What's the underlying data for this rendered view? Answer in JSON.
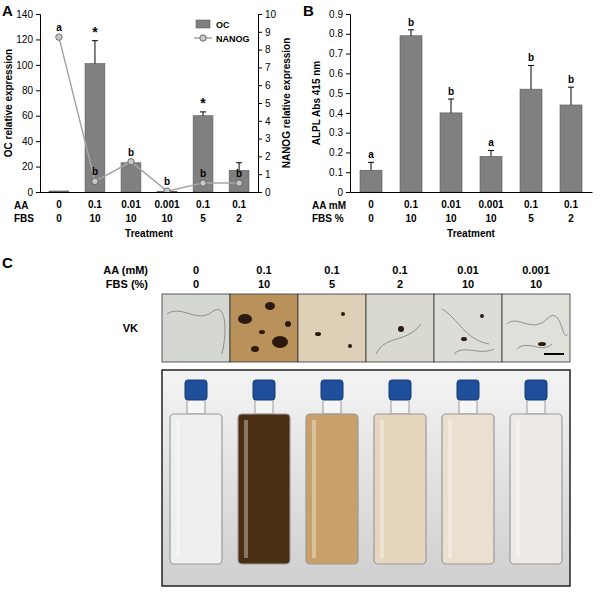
{
  "chart_data": [
    {
      "panel_label": "A",
      "type": "bar",
      "categories": [
        "0",
        "0.1",
        "0.01",
        "0.001",
        "0.1",
        "0.1"
      ],
      "category_label": "AA",
      "fbs": [
        "0",
        "10",
        "10",
        "10",
        "5",
        "2"
      ],
      "fbs_label": "FBS",
      "x_label": "Treatment",
      "y_label": "OC relative expression",
      "y2_label": "NANOG relative expression",
      "ylim": [
        0,
        140
      ],
      "yticks": [
        0,
        20,
        40,
        60,
        80,
        100,
        120,
        140
      ],
      "y2lim": [
        0,
        10
      ],
      "y2ticks": [
        0,
        1,
        2,
        3,
        4,
        5,
        6,
        7,
        8,
        9,
        10
      ],
      "legend": "top-right",
      "series": [
        {
          "name": "OC",
          "type": "bar",
          "color": "#808080",
          "values": [
            0.8,
            101,
            23,
            0.3,
            60,
            17
          ],
          "errors": [
            null,
            18,
            2,
            null,
            3,
            6
          ],
          "annotations": [
            null,
            "*",
            null,
            null,
            "*",
            null
          ]
        },
        {
          "name": "NANOG",
          "type": "line",
          "axis": "y2",
          "color": "#a6a6a6",
          "marker": "circle",
          "values": [
            8.7,
            0.6,
            1.7,
            0.05,
            0.5,
            0.5
          ],
          "annotations": [
            "a",
            "b",
            "b",
            "b",
            "b",
            "b"
          ]
        }
      ]
    },
    {
      "panel_label": "B",
      "type": "bar",
      "categories": [
        "0",
        "0.1",
        "0.01",
        "0.001",
        "0.1",
        "0.1"
      ],
      "category_label": "AA mM",
      "fbs": [
        "0",
        "10",
        "10",
        "10",
        "5",
        "2"
      ],
      "fbs_label": "FBS %",
      "x_label": "Treatment",
      "y_label": "ALPL Abs 415 nm",
      "ylim": [
        0,
        0.9
      ],
      "yticks": [
        0,
        0.1,
        0.2,
        0.3,
        0.4,
        0.5,
        0.6,
        0.7,
        0.8,
        0.9
      ],
      "color": "#808080",
      "values": [
        0.11,
        0.79,
        0.4,
        0.18,
        0.52,
        0.44
      ],
      "errors": [
        0.04,
        0.03,
        0.07,
        0.03,
        0.12,
        0.09
      ],
      "annotations": [
        "a",
        "b",
        "b",
        "a",
        "b",
        "b"
      ]
    }
  ],
  "panel_c": {
    "panel_label": "C",
    "aa_label": "AA (mM)",
    "aa": [
      "0",
      "0.1",
      "0.1",
      "0.1",
      "0.01",
      "0.001"
    ],
    "fbs_label": "FBS (%)",
    "fbs": [
      "0",
      "10",
      "5",
      "2",
      "10",
      "10"
    ],
    "stain_label": "VK"
  }
}
